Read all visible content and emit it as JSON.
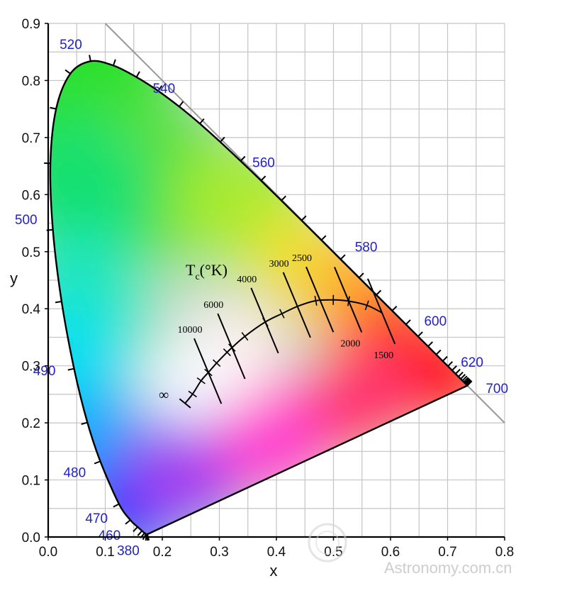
{
  "chart_data": {
    "type": "scatter",
    "xlabel": "x",
    "ylabel": "y",
    "xlim": [
      0.0,
      0.8
    ],
    "ylim": [
      0.0,
      0.9
    ],
    "x_ticks": [
      "0.0",
      "0.1",
      "0.2",
      "0.3",
      "0.4",
      "0.5",
      "0.6",
      "0.7",
      "0.8"
    ],
    "y_ticks": [
      "0.0",
      "0.1",
      "0.2",
      "0.3",
      "0.4",
      "0.5",
      "0.6",
      "0.7",
      "0.8",
      "0.9"
    ],
    "grid": true,
    "spectral_locus": [
      [
        0.1741,
        0.005
      ],
      [
        0.1738,
        0.0049
      ],
      [
        0.1733,
        0.0048
      ],
      [
        0.1726,
        0.0048
      ],
      [
        0.1714,
        0.0051
      ],
      [
        0.1689,
        0.0069
      ],
      [
        0.1644,
        0.0109
      ],
      [
        0.1566,
        0.0177
      ],
      [
        0.144,
        0.0297
      ],
      [
        0.1241,
        0.0578
      ],
      [
        0.0913,
        0.1327
      ],
      [
        0.0687,
        0.2007
      ],
      [
        0.0454,
        0.295
      ],
      [
        0.0235,
        0.4127
      ],
      [
        0.0082,
        0.5384
      ],
      [
        0.0039,
        0.6548
      ],
      [
        0.0139,
        0.7502
      ],
      [
        0.0389,
        0.812
      ],
      [
        0.0743,
        0.8338
      ],
      [
        0.1142,
        0.8262
      ],
      [
        0.1547,
        0.8059
      ],
      [
        0.1929,
        0.7816
      ],
      [
        0.2296,
        0.7543
      ],
      [
        0.2658,
        0.7243
      ],
      [
        0.3016,
        0.6923
      ],
      [
        0.3373,
        0.6589
      ],
      [
        0.3731,
        0.6245
      ],
      [
        0.4087,
        0.5896
      ],
      [
        0.4441,
        0.5547
      ],
      [
        0.4788,
        0.5202
      ],
      [
        0.5125,
        0.4866
      ],
      [
        0.5448,
        0.4544
      ],
      [
        0.5752,
        0.4242
      ],
      [
        0.6029,
        0.3965
      ],
      [
        0.627,
        0.3725
      ],
      [
        0.6482,
        0.3514
      ],
      [
        0.6658,
        0.334
      ],
      [
        0.6801,
        0.3197
      ],
      [
        0.6915,
        0.3083
      ],
      [
        0.7006,
        0.2993
      ],
      [
        0.7079,
        0.292
      ],
      [
        0.714,
        0.2859
      ],
      [
        0.719,
        0.2809
      ],
      [
        0.723,
        0.277
      ],
      [
        0.726,
        0.274
      ],
      [
        0.7283,
        0.2717
      ],
      [
        0.73,
        0.27
      ],
      [
        0.7311,
        0.2689
      ],
      [
        0.732,
        0.268
      ],
      [
        0.7327,
        0.2673
      ],
      [
        0.7334,
        0.2666
      ],
      [
        0.734,
        0.266
      ],
      [
        0.7344,
        0.2656
      ],
      [
        0.7346,
        0.2654
      ],
      [
        0.7347,
        0.2653
      ]
    ],
    "wavelength_labels": [
      {
        "label": "380",
        "x": 0.174,
        "y": 0.005
      },
      {
        "label": "460",
        "x": 0.144,
        "y": 0.03
      },
      {
        "label": "470",
        "x": 0.124,
        "y": 0.058
      },
      {
        "label": "480",
        "x": 0.091,
        "y": 0.133
      },
      {
        "label": "490",
        "x": 0.045,
        "y": 0.295
      },
      {
        "label": "500",
        "x": 0.008,
        "y": 0.538
      },
      {
        "label": "520",
        "x": 0.074,
        "y": 0.834
      },
      {
        "label": "540",
        "x": 0.23,
        "y": 0.754
      },
      {
        "label": "560",
        "x": 0.373,
        "y": 0.624
      },
      {
        "label": "580",
        "x": 0.513,
        "y": 0.487
      },
      {
        "label": "600",
        "x": 0.627,
        "y": 0.373
      },
      {
        "label": "620",
        "x": 0.691,
        "y": 0.308
      },
      {
        "label": "700",
        "x": 0.735,
        "y": 0.265
      }
    ],
    "planckian_locus": [
      [
        0.2399,
        0.2342
      ],
      [
        0.2531,
        0.2505
      ],
      [
        0.268,
        0.2738
      ],
      [
        0.2807,
        0.2883
      ],
      [
        0.2952,
        0.3048
      ],
      [
        0.3135,
        0.3237
      ],
      [
        0.3221,
        0.3318
      ],
      [
        0.3447,
        0.3516
      ],
      [
        0.3805,
        0.3768
      ],
      [
        0.4097,
        0.3914
      ],
      [
        0.4368,
        0.4041
      ],
      [
        0.469,
        0.4141
      ],
      [
        0.4997,
        0.4155
      ],
      [
        0.5267,
        0.4133
      ],
      [
        0.5587,
        0.406
      ],
      [
        0.585,
        0.393
      ]
    ],
    "isotherms": [
      {
        "label": "10000",
        "x": 0.2807,
        "y": 0.2883,
        "mark_x": 0.25
      },
      {
        "label": "6000",
        "x": 0.3221,
        "y": 0.3318,
        "mark_x": 0.33
      },
      {
        "label": "4000",
        "x": 0.3805,
        "y": 0.3768,
        "mark_x": 0.38
      },
      {
        "label": "3000",
        "x": 0.4368,
        "y": 0.4041,
        "mark_x": 0.43
      },
      {
        "label": "2500",
        "x": 0.477,
        "y": 0.4137,
        "mark_x": 0.48
      },
      {
        "label": "2000",
        "x": 0.5267,
        "y": 0.4133,
        "mark_x": 0.51
      },
      {
        "label": "1500",
        "x": 0.585,
        "y": 0.393,
        "mark_x": 0.56
      }
    ],
    "infinity_label": "∞",
    "tc_title": "T",
    "tc_sub": "c",
    "tc_unit": "(°K)",
    "watermark_text": "Astronomy.com.cn"
  }
}
